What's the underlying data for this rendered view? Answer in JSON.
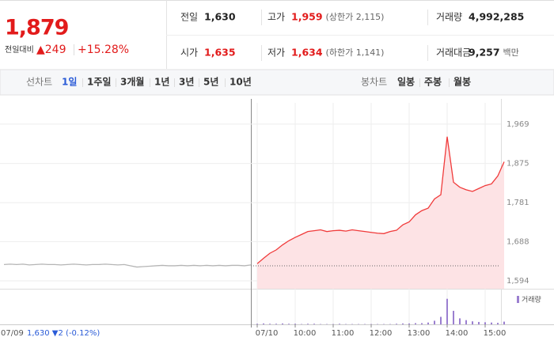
{
  "header": {
    "price": "1,879",
    "change_label": "전일대비",
    "change": "▲249",
    "change_rate": "+15.28%",
    "cells": [
      {
        "label": "전일",
        "value": "1,630",
        "note": null
      },
      {
        "label": "고가",
        "value": "1,959",
        "note": "(상한가 2,115)"
      },
      {
        "label": "거래량",
        "value": "4,992,285",
        "note": null
      },
      {
        "label": "시가",
        "value": "1,635",
        "note": null
      },
      {
        "label": "저가",
        "value": "1,634",
        "note": "(하한가 1,141)"
      },
      {
        "label": "거래대금",
        "value": "9,257",
        "note": "백만"
      }
    ]
  },
  "tabs": {
    "line_label": "선차트",
    "line_periods": [
      "1일",
      "1주일",
      "3개월",
      "1년",
      "3년",
      "5년",
      "10년"
    ],
    "candle_label": "봉차트",
    "candle_periods": [
      "일봉",
      "주봉",
      "월봉"
    ]
  },
  "chart_data": {
    "type": "line",
    "categories": [
      "07/09",
      null,
      null,
      null,
      null,
      null,
      null,
      null,
      null,
      null,
      null,
      null,
      null,
      null,
      null,
      null,
      null,
      null,
      null,
      null,
      null,
      null,
      null,
      null,
      null,
      null,
      null,
      null,
      null,
      null,
      null,
      null,
      null,
      null,
      null,
      null,
      null,
      null,
      null,
      null,
      "07/10",
      null,
      null,
      null,
      null,
      null,
      "10:00",
      null,
      null,
      null,
      null,
      null,
      "11:00",
      null,
      null,
      null,
      null,
      null,
      "12:00",
      null,
      null,
      null,
      null,
      null,
      "13:00",
      null,
      null,
      null,
      null,
      null,
      "14:00",
      null,
      null,
      null,
      null,
      null,
      "15:00",
      null,
      null,
      null
    ],
    "series": [
      {
        "color": "#b5b5b5",
        "values": [
          1633,
          1634,
          1633,
          1634,
          1632,
          1633,
          1634,
          1633,
          1633,
          1632,
          1633,
          1634,
          1633,
          1632,
          1633,
          1633,
          1634,
          1633,
          1632,
          1633,
          1630,
          1627,
          1628,
          1629,
          1630,
          1631,
          1630,
          1630,
          1631,
          1630,
          1631,
          1630,
          1631,
          1630,
          1631,
          1630,
          1631,
          1631,
          1630,
          1632,
          null,
          null,
          null,
          null,
          null,
          null,
          null,
          null,
          null,
          null,
          null,
          null,
          null,
          null,
          null,
          null,
          null,
          null,
          null,
          null,
          null,
          null,
          null,
          null,
          null,
          null,
          null,
          null,
          null,
          null,
          null,
          null,
          null,
          null,
          null,
          null,
          null,
          null,
          null,
          null
        ]
      },
      {
        "color": "#f03a3a",
        "fill": "#fde3e5",
        "values": [
          null,
          null,
          null,
          null,
          null,
          null,
          null,
          null,
          null,
          null,
          null,
          null,
          null,
          null,
          null,
          null,
          null,
          null,
          null,
          null,
          null,
          null,
          null,
          null,
          null,
          null,
          null,
          null,
          null,
          null,
          null,
          null,
          null,
          null,
          null,
          null,
          null,
          null,
          null,
          null,
          1635,
          1648,
          1660,
          1668,
          1680,
          1690,
          1698,
          1705,
          1712,
          1714,
          1716,
          1712,
          1714,
          1715,
          1713,
          1716,
          1714,
          1712,
          1710,
          1708,
          1707,
          1712,
          1715,
          1728,
          1735,
          1752,
          1762,
          1768,
          1790,
          1800,
          1939,
          1830,
          1818,
          1812,
          1808,
          1815,
          1822,
          1826,
          1845,
          1879
        ]
      },
      {
        "name": "거래량",
        "color": "#9b7fd0",
        "axis": "y2",
        "values": [
          null,
          null,
          null,
          null,
          null,
          null,
          null,
          null,
          null,
          null,
          null,
          null,
          null,
          null,
          null,
          null,
          null,
          null,
          null,
          null,
          null,
          null,
          null,
          null,
          null,
          null,
          null,
          null,
          null,
          null,
          null,
          null,
          null,
          null,
          null,
          null,
          null,
          null,
          null,
          null,
          2,
          3,
          2,
          2,
          3,
          2,
          2,
          1,
          2,
          2,
          1,
          1,
          1,
          2,
          1,
          1,
          1,
          1,
          1,
          1,
          1,
          1,
          2,
          3,
          3,
          4,
          4,
          6,
          12,
          25,
          85,
          45,
          20,
          14,
          10,
          8,
          7,
          6,
          5,
          9
        ]
      }
    ],
    "reference_line": 1630,
    "reference_note": "1,630 ▼2 (-0.12%)",
    "ylim": [
      1575,
      2020
    ],
    "yticks": [
      {
        "value": 1969,
        "label": "1,969"
      },
      {
        "value": 1875,
        "label": "1,875"
      },
      {
        "value": 1781,
        "label": "1,781"
      },
      {
        "value": 1688,
        "label": "1,688"
      },
      {
        "value": 1594,
        "label": "1,594"
      }
    ],
    "y2lim": [
      0,
      100
    ],
    "grid": true,
    "legend": "top-right"
  }
}
